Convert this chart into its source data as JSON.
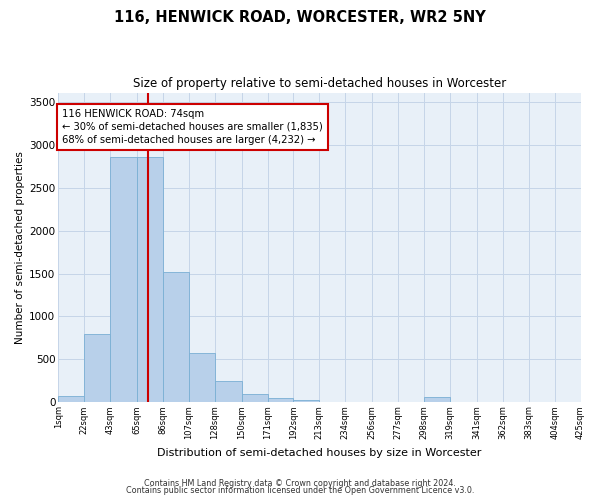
{
  "title": "116, HENWICK ROAD, WORCESTER, WR2 5NY",
  "subtitle": "Size of property relative to semi-detached houses in Worcester",
  "xlabel": "Distribution of semi-detached houses by size in Worcester",
  "ylabel": "Number of semi-detached properties",
  "footer_line1": "Contains HM Land Registry data © Crown copyright and database right 2024.",
  "footer_line2": "Contains public sector information licensed under the Open Government Licence v3.0.",
  "annotation_title": "116 HENWICK ROAD: 74sqm",
  "annotation_line1": "← 30% of semi-detached houses are smaller (1,835)",
  "annotation_line2": "68% of semi-detached houses are larger (4,232) →",
  "property_size": 74,
  "bin_edges": [
    1,
    22,
    43,
    65,
    86,
    107,
    128,
    150,
    171,
    192,
    213,
    234,
    256,
    277,
    298,
    319,
    341,
    362,
    383,
    404,
    425
  ],
  "bin_labels": [
    "1sqm",
    "22sqm",
    "43sqm",
    "65sqm",
    "86sqm",
    "107sqm",
    "128sqm",
    "150sqm",
    "171sqm",
    "192sqm",
    "213sqm",
    "234sqm",
    "256sqm",
    "277sqm",
    "298sqm",
    "319sqm",
    "341sqm",
    "362sqm",
    "383sqm",
    "404sqm",
    "425sqm"
  ],
  "counts": [
    75,
    800,
    2850,
    2850,
    1520,
    580,
    250,
    100,
    55,
    25,
    10,
    5,
    0,
    0,
    65,
    0,
    0,
    0,
    0,
    0
  ],
  "bar_color": "#b8d0ea",
  "bar_edge_color": "#7aafd4",
  "line_color": "#cc0000",
  "annotation_box_edge_color": "#cc0000",
  "bg_color": "#e8f0f8",
  "grid_color": "#c5d5e8",
  "ylim": [
    0,
    3600
  ],
  "yticks": [
    0,
    500,
    1000,
    1500,
    2000,
    2500,
    3000,
    3500
  ]
}
